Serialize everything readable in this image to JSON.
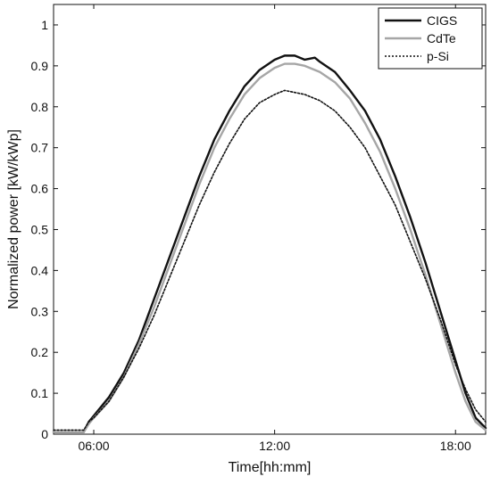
{
  "chart_data": {
    "type": "line",
    "title": "",
    "xlabel": "Time[hh:mm]",
    "ylabel": "Normalized power [kW/kWp]",
    "xlim": [
      "04:40",
      "19:00"
    ],
    "ylim": [
      0,
      1.05
    ],
    "x_ticks": [
      "06:00",
      "12:00",
      "18:00"
    ],
    "y_ticks": [
      "0",
      "0.1",
      "0.2",
      "0.3",
      "0.4",
      "0.5",
      "0.6",
      "0.7",
      "0.8",
      "0.9",
      "1"
    ],
    "grid": false,
    "legend_position": "top-right",
    "series": [
      {
        "name": "CIGS",
        "color": "#111111",
        "style": "solid-thick",
        "points": [
          [
            "04:40",
            0.005
          ],
          [
            "05:40",
            0.005
          ],
          [
            "05:50",
            0.03
          ],
          [
            "06:00",
            0.045
          ],
          [
            "06:30",
            0.09
          ],
          [
            "07:00",
            0.15
          ],
          [
            "07:30",
            0.23
          ],
          [
            "08:00",
            0.33
          ],
          [
            "08:30",
            0.43
          ],
          [
            "09:00",
            0.53
          ],
          [
            "09:30",
            0.63
          ],
          [
            "10:00",
            0.72
          ],
          [
            "10:30",
            0.79
          ],
          [
            "11:00",
            0.85
          ],
          [
            "11:30",
            0.89
          ],
          [
            "12:00",
            0.915
          ],
          [
            "12:20",
            0.925
          ],
          [
            "12:40",
            0.925
          ],
          [
            "13:00",
            0.915
          ],
          [
            "13:20",
            0.92
          ],
          [
            "13:30",
            0.91
          ],
          [
            "14:00",
            0.885
          ],
          [
            "14:30",
            0.84
          ],
          [
            "15:00",
            0.79
          ],
          [
            "15:30",
            0.72
          ],
          [
            "16:00",
            0.63
          ],
          [
            "16:30",
            0.53
          ],
          [
            "17:00",
            0.42
          ],
          [
            "17:30",
            0.3
          ],
          [
            "18:00",
            0.18
          ],
          [
            "18:20",
            0.1
          ],
          [
            "18:40",
            0.04
          ],
          [
            "19:00",
            0.015
          ]
        ]
      },
      {
        "name": "CdTe",
        "color": "#a6a6a6",
        "style": "solid",
        "points": [
          [
            "04:40",
            0.005
          ],
          [
            "05:40",
            0.005
          ],
          [
            "05:50",
            0.025
          ],
          [
            "06:00",
            0.04
          ],
          [
            "06:30",
            0.08
          ],
          [
            "07:00",
            0.14
          ],
          [
            "07:30",
            0.22
          ],
          [
            "08:00",
            0.31
          ],
          [
            "08:30",
            0.41
          ],
          [
            "09:00",
            0.51
          ],
          [
            "09:30",
            0.61
          ],
          [
            "10:00",
            0.7
          ],
          [
            "10:30",
            0.77
          ],
          [
            "11:00",
            0.83
          ],
          [
            "11:30",
            0.87
          ],
          [
            "12:00",
            0.895
          ],
          [
            "12:20",
            0.905
          ],
          [
            "12:40",
            0.905
          ],
          [
            "13:00",
            0.9
          ],
          [
            "13:30",
            0.885
          ],
          [
            "14:00",
            0.86
          ],
          [
            "14:30",
            0.82
          ],
          [
            "15:00",
            0.76
          ],
          [
            "15:30",
            0.69
          ],
          [
            "16:00",
            0.6
          ],
          [
            "16:30",
            0.5
          ],
          [
            "17:00",
            0.39
          ],
          [
            "17:30",
            0.27
          ],
          [
            "18:00",
            0.15
          ],
          [
            "18:20",
            0.08
          ],
          [
            "18:40",
            0.03
          ],
          [
            "19:00",
            0.01
          ]
        ]
      },
      {
        "name": "p-Si",
        "color": "#111111",
        "style": "dotted",
        "points": [
          [
            "04:40",
            0.01
          ],
          [
            "05:40",
            0.01
          ],
          [
            "05:50",
            0.03
          ],
          [
            "06:00",
            0.04
          ],
          [
            "06:30",
            0.08
          ],
          [
            "07:00",
            0.14
          ],
          [
            "07:30",
            0.21
          ],
          [
            "08:00",
            0.29
          ],
          [
            "08:30",
            0.38
          ],
          [
            "09:00",
            0.47
          ],
          [
            "09:30",
            0.56
          ],
          [
            "10:00",
            0.64
          ],
          [
            "10:30",
            0.71
          ],
          [
            "11:00",
            0.77
          ],
          [
            "11:30",
            0.81
          ],
          [
            "12:00",
            0.83
          ],
          [
            "12:20",
            0.84
          ],
          [
            "12:40",
            0.835
          ],
          [
            "13:00",
            0.83
          ],
          [
            "13:30",
            0.815
          ],
          [
            "14:00",
            0.79
          ],
          [
            "14:30",
            0.75
          ],
          [
            "15:00",
            0.7
          ],
          [
            "15:30",
            0.63
          ],
          [
            "16:00",
            0.56
          ],
          [
            "16:30",
            0.47
          ],
          [
            "17:00",
            0.38
          ],
          [
            "17:30",
            0.28
          ],
          [
            "18:00",
            0.17
          ],
          [
            "18:20",
            0.11
          ],
          [
            "18:40",
            0.06
          ],
          [
            "19:00",
            0.03
          ]
        ]
      }
    ]
  }
}
